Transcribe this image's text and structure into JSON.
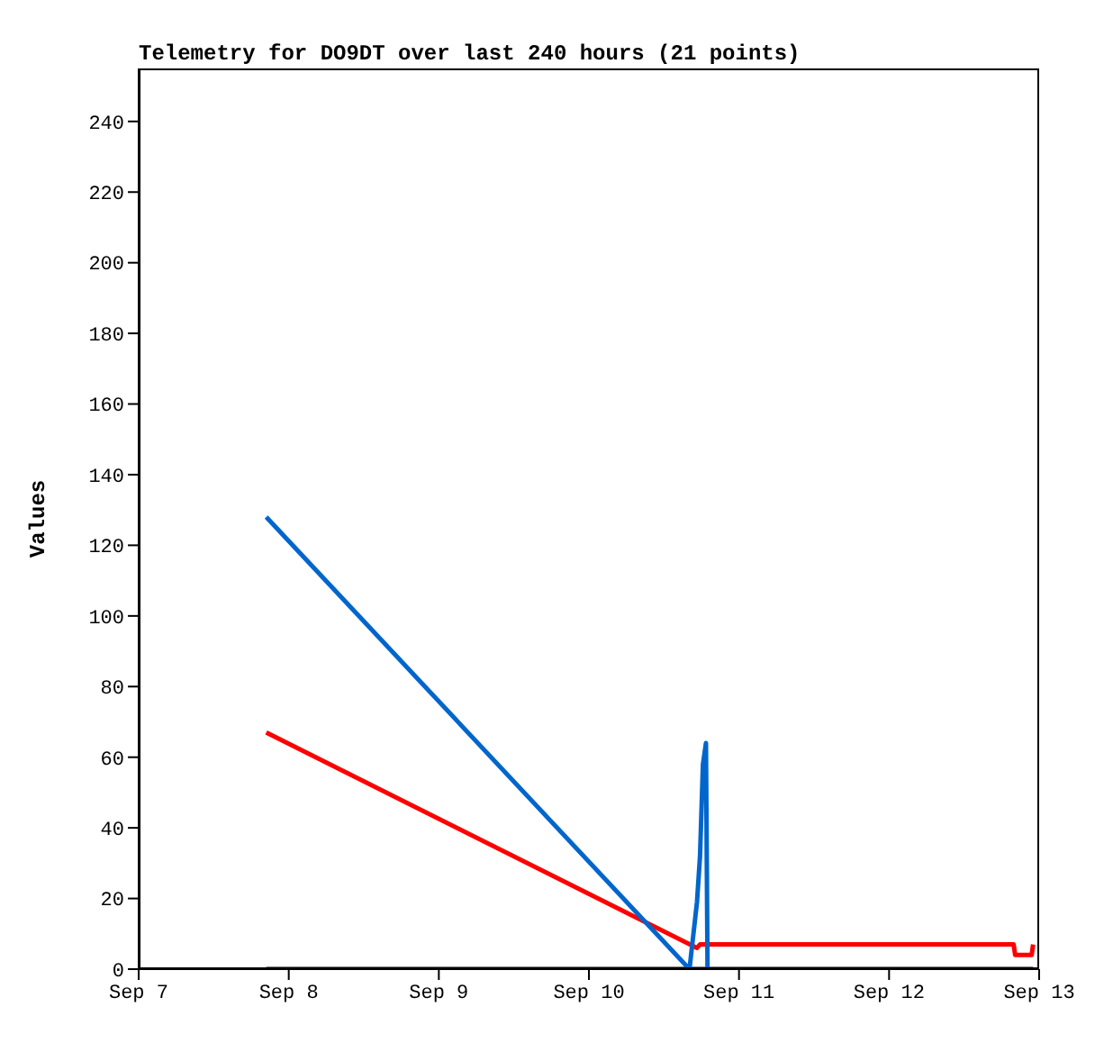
{
  "chart_data": {
    "type": "line",
    "title": "Telemetry for DO9DT over last 240 hours (21 points)",
    "ylabel": "Values",
    "xlim": [
      "--09-07",
      "--09-13"
    ],
    "xticks": [
      {
        "value": "--09-07",
        "label": "Sep 7"
      },
      {
        "value": "--09-08",
        "label": "Sep 8"
      },
      {
        "value": "--09-09",
        "label": "Sep 9"
      },
      {
        "value": "--09-10",
        "label": "Sep 10"
      },
      {
        "value": "--09-11",
        "label": "Sep 11"
      },
      {
        "value": "--09-12",
        "label": "Sep 12"
      },
      {
        "value": "--09-13",
        "label": "Sep 13"
      }
    ],
    "ylim": [
      0,
      255
    ],
    "yticks": [
      0,
      20,
      40,
      60,
      80,
      100,
      120,
      140,
      160,
      180,
      200,
      220,
      240
    ],
    "grid": false,
    "legend": false,
    "marker": "none",
    "line_style": "solid",
    "series": [
      {
        "color": "#000000",
        "x": [
          "--09-07T20:24",
          "--09-12T23:02"
        ],
        "values": [
          0,
          0
        ]
      },
      {
        "color": "#ff0000",
        "x": [
          "--09-07T20:24",
          "--09-10T17:17",
          "--09-10T17:46",
          "--09-12T19:55",
          "--09-12T20:10",
          "--09-12T22:48",
          "--09-12T23:02"
        ],
        "values": [
          67,
          6,
          7,
          7,
          4,
          4,
          7
        ]
      },
      {
        "color": "#0066cc",
        "x": [
          "--09-07T20:24",
          "--09-10T16:05",
          "--09-10T17:17",
          "--09-10T17:46",
          "--09-10T18:00",
          "--09-10T18:14",
          "--09-10T18:43",
          "--09-10T18:58"
        ],
        "values": [
          128,
          0,
          19,
          32,
          45,
          58,
          64,
          0
        ]
      }
    ]
  }
}
